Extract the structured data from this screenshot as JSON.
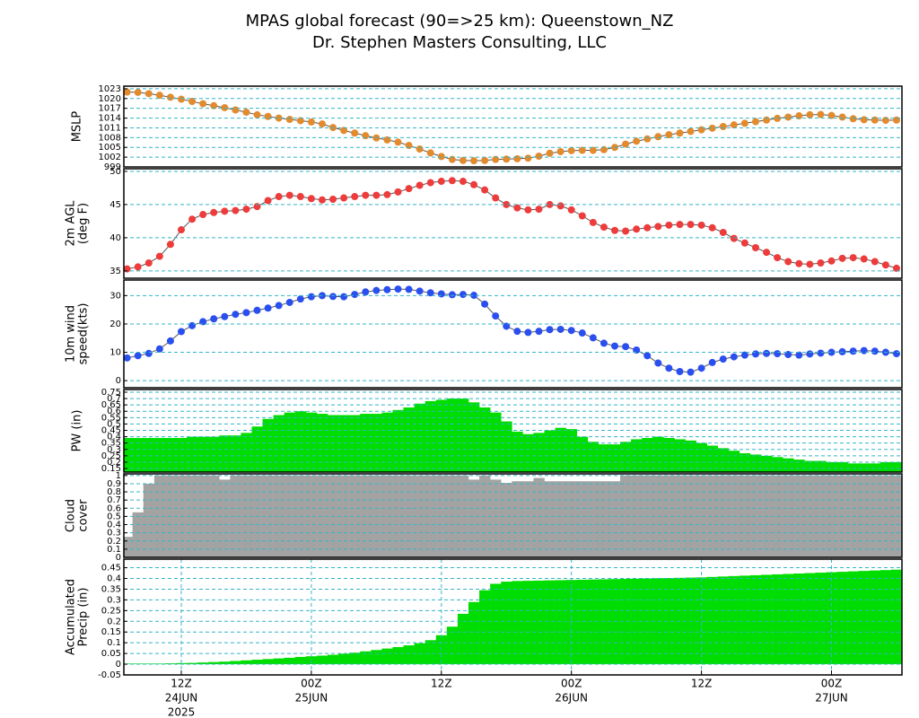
{
  "header": {
    "title": "MPAS global forecast (90=>25 km): Queenstown_NZ",
    "subtitle": "Dr. Stephen Masters Consulting, LLC"
  },
  "chart_data": [
    {
      "type": "line",
      "ylabel": [
        "MSLP"
      ],
      "color": "#e38a2c",
      "grid": true,
      "xlim": [
        6.7,
        78.5
      ],
      "ylim": [
        999,
        1023.8
      ],
      "yticks": [
        999,
        1002,
        1005,
        1008,
        1011,
        1014,
        1017,
        1020,
        1023
      ],
      "x": [
        7,
        8,
        9,
        10,
        11,
        12,
        13,
        14,
        15,
        16,
        17,
        18,
        19,
        20,
        21,
        22,
        23,
        24,
        25,
        26,
        27,
        28,
        29,
        30,
        31,
        32,
        33,
        34,
        35,
        36,
        37,
        38,
        39,
        40,
        41,
        42,
        43,
        44,
        45,
        46,
        47,
        48,
        49,
        50,
        51,
        52,
        53,
        54,
        55,
        56,
        57,
        58,
        59,
        60,
        61,
        62,
        63,
        64,
        65,
        66,
        67,
        68,
        69,
        70,
        71,
        72,
        73,
        74,
        75,
        76,
        77,
        78
      ],
      "values": [
        1022.0,
        1021.9,
        1021.5,
        1021.0,
        1020.4,
        1019.8,
        1019.1,
        1018.4,
        1017.8,
        1017.2,
        1016.5,
        1015.8,
        1015.0,
        1014.5,
        1014.0,
        1013.6,
        1013.2,
        1012.8,
        1012.2,
        1011.1,
        1010.2,
        1009.4,
        1008.6,
        1007.9,
        1007.3,
        1006.6,
        1005.6,
        1004.5,
        1003.3,
        1002.2,
        1001.3,
        1001.0,
        1000.9,
        1001.0,
        1001.3,
        1001.4,
        1001.5,
        1001.7,
        1002.3,
        1003.2,
        1003.7,
        1004.0,
        1004.1,
        1004.1,
        1004.3,
        1005.0,
        1006.0,
        1006.9,
        1007.6,
        1008.3,
        1008.9,
        1009.4,
        1009.9,
        1010.4,
        1010.9,
        1011.4,
        1011.9,
        1012.4,
        1012.9,
        1013.4,
        1013.9,
        1014.3,
        1014.7,
        1015.0,
        1015.1,
        1014.8,
        1014.3,
        1013.8,
        1013.5,
        1013.4,
        1013.3,
        1013.4
      ]
    },
    {
      "type": "line",
      "ylabel": [
        "2m AGL",
        "(deg F)"
      ],
      "color": "#ee3b3b",
      "grid": true,
      "xlim": [
        6.7,
        78.5
      ],
      "ylim": [
        33.9,
        50.4
      ],
      "yticks": [
        35,
        40,
        45,
        50
      ],
      "x": [
        7,
        8,
        9,
        10,
        11,
        12,
        13,
        14,
        15,
        16,
        17,
        18,
        19,
        20,
        21,
        22,
        23,
        24,
        25,
        26,
        27,
        28,
        29,
        30,
        31,
        32,
        33,
        34,
        35,
        36,
        37,
        38,
        39,
        40,
        41,
        42,
        43,
        44,
        45,
        46,
        47,
        48,
        49,
        50,
        51,
        52,
        53,
        54,
        55,
        56,
        57,
        58,
        59,
        60,
        61,
        62,
        63,
        64,
        65,
        66,
        67,
        68,
        69,
        70,
        71,
        72,
        73,
        74,
        75,
        76,
        77,
        78
      ],
      "values": [
        35.3,
        35.6,
        36.2,
        37.2,
        39.0,
        41.2,
        42.8,
        43.5,
        43.8,
        44.0,
        44.1,
        44.3,
        44.7,
        45.6,
        46.2,
        46.4,
        46.2,
        45.9,
        45.7,
        45.8,
        46.0,
        46.2,
        46.4,
        46.4,
        46.5,
        46.9,
        47.4,
        47.9,
        48.3,
        48.5,
        48.6,
        48.5,
        48.0,
        47.2,
        46.0,
        45.0,
        44.5,
        44.2,
        44.3,
        45.0,
        44.8,
        44.2,
        43.3,
        42.3,
        41.6,
        41.1,
        41.0,
        41.3,
        41.5,
        41.7,
        41.9,
        42.0,
        42.0,
        41.9,
        41.5,
        40.8,
        39.9,
        39.2,
        38.5,
        37.8,
        37.0,
        36.4,
        36.1,
        36.0,
        36.2,
        36.5,
        36.9,
        37.0,
        36.8,
        36.4,
        35.9,
        35.4
      ]
    },
    {
      "type": "line",
      "ylabel": [
        "10m wind",
        "speed(kts)"
      ],
      "color": "#2a4ff0",
      "grid": true,
      "xlim": [
        6.7,
        78.5
      ],
      "ylim": [
        -2.5,
        35.5
      ],
      "yticks": [
        0,
        10,
        20,
        30
      ],
      "x": [
        7,
        8,
        9,
        10,
        11,
        12,
        13,
        14,
        15,
        16,
        17,
        18,
        19,
        20,
        21,
        22,
        23,
        24,
        25,
        26,
        27,
        28,
        29,
        30,
        31,
        32,
        33,
        34,
        35,
        36,
        37,
        38,
        39,
        40,
        41,
        42,
        43,
        44,
        45,
        46,
        47,
        48,
        49,
        50,
        51,
        52,
        53,
        54,
        55,
        56,
        57,
        58,
        59,
        60,
        61,
        62,
        63,
        64,
        65,
        66,
        67,
        68,
        69,
        70,
        71,
        72,
        73,
        74,
        75,
        76,
        77,
        78
      ],
      "values": [
        8.0,
        8.8,
        9.6,
        11.2,
        14.0,
        17.3,
        19.4,
        20.8,
        21.8,
        22.6,
        23.4,
        24.0,
        24.8,
        25.6,
        26.5,
        27.6,
        28.8,
        29.6,
        30.0,
        29.7,
        29.6,
        30.4,
        31.3,
        31.8,
        32.1,
        32.3,
        32.2,
        31.6,
        31.0,
        30.6,
        30.3,
        30.4,
        30.1,
        27.0,
        22.8,
        19.2,
        17.4,
        17.0,
        17.4,
        18.0,
        18.1,
        17.7,
        16.8,
        15.1,
        13.2,
        12.2,
        12.0,
        10.8,
        8.8,
        6.2,
        4.4,
        3.2,
        3.0,
        4.4,
        6.4,
        7.6,
        8.4,
        9.0,
        9.4,
        9.6,
        9.5,
        9.2,
        9.0,
        9.4,
        9.7,
        10.0,
        10.2,
        10.4,
        10.6,
        10.4,
        10.0,
        9.5
      ]
    },
    {
      "type": "bar",
      "ylabel": [
        "PW (in)"
      ],
      "color": "#00dd00",
      "grid": true,
      "xlim": [
        6.7,
        78.5
      ],
      "ylim": [
        0.122,
        0.771
      ],
      "yticks": [
        0.15,
        0.2,
        0.25,
        0.3,
        0.35,
        0.4,
        0.45,
        0.5,
        0.55,
        0.6,
        0.65,
        0.7,
        0.75
      ],
      "x": [
        7,
        8,
        9,
        10,
        11,
        12,
        13,
        14,
        15,
        16,
        17,
        18,
        19,
        20,
        21,
        22,
        23,
        24,
        25,
        26,
        27,
        28,
        29,
        30,
        31,
        32,
        33,
        34,
        35,
        36,
        37,
        38,
        39,
        40,
        41,
        42,
        43,
        44,
        45,
        46,
        47,
        48,
        49,
        50,
        51,
        52,
        53,
        54,
        55,
        56,
        57,
        58,
        59,
        60,
        61,
        62,
        63,
        64,
        65,
        66,
        67,
        68,
        69,
        70,
        71,
        72,
        73,
        74,
        75,
        76,
        77,
        78
      ],
      "values": [
        0.39,
        0.39,
        0.39,
        0.39,
        0.39,
        0.39,
        0.4,
        0.4,
        0.4,
        0.41,
        0.41,
        0.43,
        0.48,
        0.54,
        0.57,
        0.59,
        0.6,
        0.59,
        0.58,
        0.57,
        0.57,
        0.57,
        0.58,
        0.58,
        0.59,
        0.61,
        0.63,
        0.66,
        0.68,
        0.69,
        0.7,
        0.7,
        0.67,
        0.63,
        0.59,
        0.52,
        0.44,
        0.42,
        0.43,
        0.45,
        0.47,
        0.46,
        0.4,
        0.36,
        0.34,
        0.34,
        0.36,
        0.38,
        0.39,
        0.4,
        0.39,
        0.38,
        0.37,
        0.35,
        0.33,
        0.31,
        0.29,
        0.27,
        0.26,
        0.25,
        0.24,
        0.23,
        0.22,
        0.21,
        0.21,
        0.2,
        0.2,
        0.19,
        0.19,
        0.19,
        0.2,
        0.2
      ]
    },
    {
      "type": "bar",
      "ylabel": [
        "Cloud",
        "cover"
      ],
      "color": "#a3a3a3",
      "grid": true,
      "xlim": [
        6.7,
        78.5
      ],
      "ylim": [
        0,
        1.02
      ],
      "yticks": [
        0,
        0.1,
        0.2,
        0.3,
        0.4,
        0.5,
        0.6,
        0.7,
        0.8,
        0.9,
        1
      ],
      "x": [
        7,
        8,
        9,
        10,
        11,
        12,
        13,
        14,
        15,
        16,
        17,
        18,
        19,
        20,
        21,
        22,
        23,
        24,
        25,
        26,
        27,
        28,
        29,
        30,
        31,
        32,
        33,
        34,
        35,
        36,
        37,
        38,
        39,
        40,
        41,
        42,
        43,
        44,
        45,
        46,
        47,
        48,
        49,
        50,
        51,
        52,
        53,
        54,
        55,
        56,
        57,
        58,
        59,
        60,
        61,
        62,
        63,
        64,
        65,
        66,
        67,
        68,
        69,
        70,
        71,
        72,
        73,
        74,
        75,
        76,
        77,
        78
      ],
      "values": [
        0.25,
        0.55,
        0.9,
        1,
        1,
        1,
        1,
        1,
        1,
        0.95,
        1,
        1,
        1,
        1,
        1,
        1,
        1,
        1,
        1,
        1,
        1,
        1,
        1,
        1,
        1,
        1,
        1,
        1,
        1,
        1,
        1,
        1,
        0.95,
        1,
        0.95,
        0.91,
        0.93,
        0.93,
        0.97,
        0.93,
        0.93,
        0.93,
        0.93,
        0.93,
        0.93,
        0.93,
        1,
        1,
        1,
        1,
        1,
        1,
        1,
        1,
        1,
        1,
        1,
        1,
        1,
        1,
        1,
        1,
        1,
        1,
        1,
        1,
        1,
        1,
        1,
        1,
        1,
        1
      ]
    },
    {
      "type": "bar",
      "ylabel": [
        "Accumulated",
        "Precip (in)"
      ],
      "color": "#00dd00",
      "grid": true,
      "xlim": [
        6.7,
        78.5
      ],
      "ylim": [
        -0.05,
        0.49
      ],
      "yticks": [
        -0.05,
        0,
        0.05,
        0.1,
        0.15,
        0.2,
        0.25,
        0.3,
        0.35,
        0.4,
        0.45
      ],
      "xticks": [
        {
          "value": 12,
          "label": "12Z"
        },
        {
          "value": 24,
          "label": "00Z"
        },
        {
          "value": 36,
          "label": "12Z"
        },
        {
          "value": 48,
          "label": "00Z"
        },
        {
          "value": 60,
          "label": "12Z"
        },
        {
          "value": 72,
          "label": "00Z"
        }
      ],
      "xtick_dates": [
        {
          "value": 12,
          "label": "24JUN"
        },
        {
          "value": 24,
          "label": "25JUN"
        },
        {
          "value": 48,
          "label": "26JUN"
        },
        {
          "value": 72,
          "label": "27JUN"
        }
      ],
      "xtick_year": {
        "value": 12,
        "label": "2025"
      },
      "x": [
        7,
        8,
        9,
        10,
        11,
        12,
        13,
        14,
        15,
        16,
        17,
        18,
        19,
        20,
        21,
        22,
        23,
        24,
        25,
        26,
        27,
        28,
        29,
        30,
        31,
        32,
        33,
        34,
        35,
        36,
        37,
        38,
        39,
        40,
        41,
        42,
        43,
        44,
        45,
        46,
        47,
        48,
        49,
        50,
        51,
        52,
        53,
        54,
        55,
        56,
        57,
        58,
        59,
        60,
        61,
        62,
        63,
        64,
        65,
        66,
        67,
        68,
        69,
        70,
        71,
        72,
        73,
        74,
        75,
        76,
        77,
        78
      ],
      "values": [
        0.003,
        0.003,
        0.003,
        0.003,
        0.004,
        0.005,
        0.006,
        0.008,
        0.01,
        0.012,
        0.015,
        0.018,
        0.021,
        0.024,
        0.027,
        0.03,
        0.034,
        0.037,
        0.04,
        0.044,
        0.049,
        0.054,
        0.06,
        0.066,
        0.073,
        0.08,
        0.088,
        0.098,
        0.112,
        0.135,
        0.175,
        0.235,
        0.29,
        0.345,
        0.375,
        0.385,
        0.388,
        0.389,
        0.39,
        0.391,
        0.392,
        0.393,
        0.394,
        0.395,
        0.396,
        0.397,
        0.398,
        0.399,
        0.4,
        0.401,
        0.402,
        0.403,
        0.404,
        0.405,
        0.407,
        0.409,
        0.411,
        0.413,
        0.415,
        0.417,
        0.419,
        0.421,
        0.423,
        0.425,
        0.427,
        0.429,
        0.431,
        0.433,
        0.435,
        0.437,
        0.439,
        0.441
      ]
    }
  ]
}
